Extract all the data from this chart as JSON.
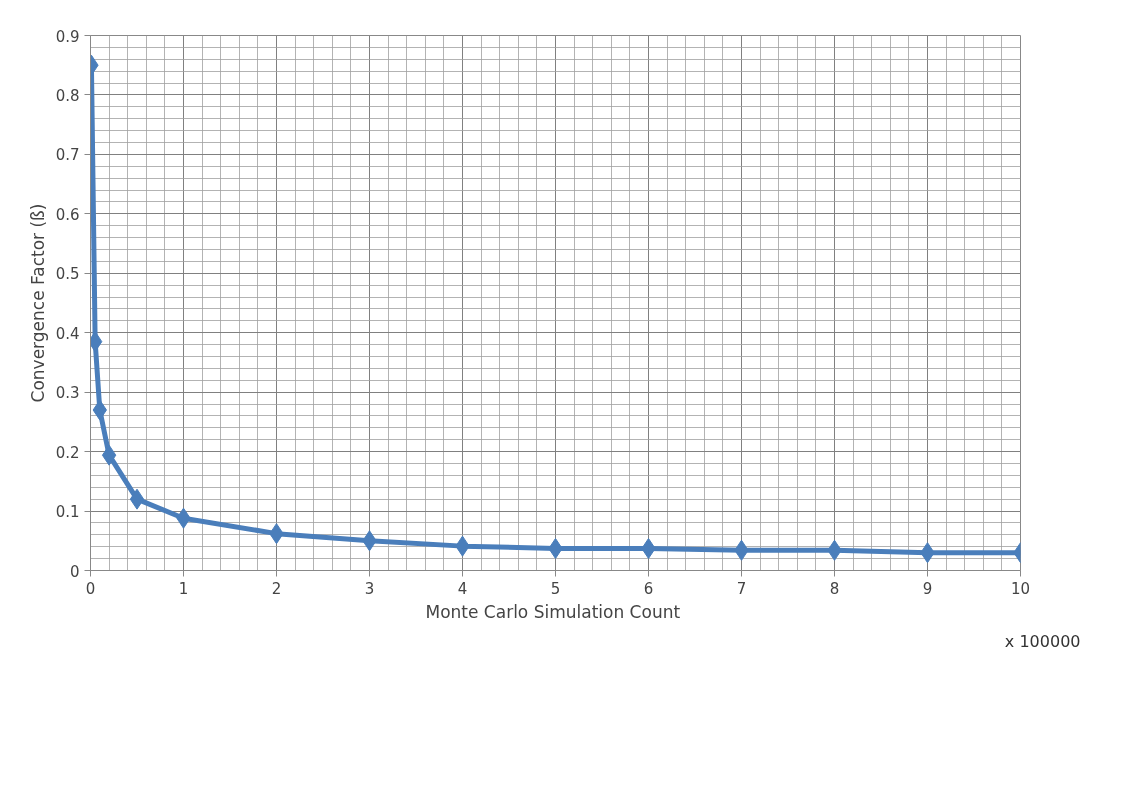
{
  "chart_data": {
    "type": "line",
    "xlabel": "Monte Carlo Simulation  Count",
    "ylabel": "Convergence Factor (ß)",
    "annotations": [
      "x 100000"
    ],
    "x": [
      0.01,
      0.05,
      0.1,
      0.2,
      0.5,
      1,
      2,
      3,
      4,
      5,
      6,
      7,
      8,
      9,
      10
    ],
    "series": [
      {
        "color": "#4a7ebb",
        "values": [
          0.85,
          0.385,
          0.27,
          0.194,
          0.12,
          0.088,
          0.062,
          0.05,
          0.041,
          0.037,
          0.037,
          0.034,
          0.034,
          0.03,
          0.03
        ]
      }
    ],
    "xlim": [
      0,
      10
    ],
    "xticks": [
      0,
      1,
      2,
      3,
      4,
      5,
      6,
      7,
      8,
      9,
      10
    ],
    "ylim": [
      0,
      0.9
    ],
    "yticks": [
      0,
      0.1,
      0.2,
      0.3,
      0.4,
      0.5,
      0.6,
      0.7,
      0.8,
      0.9
    ],
    "grid": true,
    "marker": "diamond",
    "line_style": "solid"
  }
}
